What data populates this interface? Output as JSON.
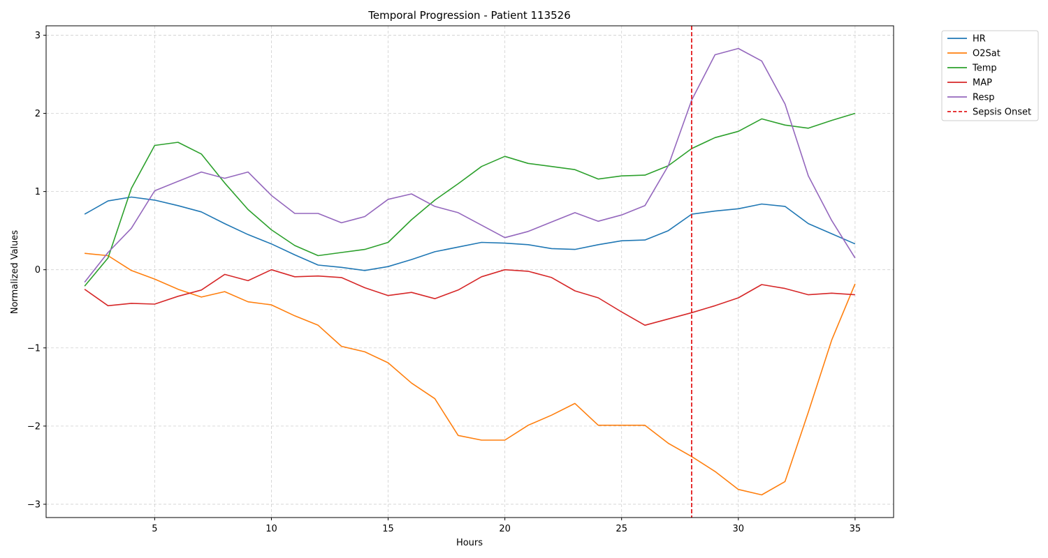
{
  "chart_data": {
    "type": "line",
    "title": "Temporal Progression - Patient 113526",
    "xlabel": "Hours",
    "ylabel": "Normalized Values",
    "xlim": [
      0.35,
      36.65
    ],
    "ylim": [
      -3.17,
      3.12
    ],
    "xticks": [
      5,
      10,
      15,
      20,
      25,
      30,
      35
    ],
    "xtick_labels": [
      "5",
      "10",
      "15",
      "20",
      "25",
      "30",
      "35"
    ],
    "yticks": [
      -3,
      -2,
      -1,
      0,
      1,
      2,
      3
    ],
    "ytick_labels": [
      "−3",
      "−2",
      "−1",
      "0",
      "1",
      "2",
      "3"
    ],
    "grid": true,
    "legend_position": "outside top-right",
    "x": [
      2,
      3,
      4,
      5,
      6,
      7,
      8,
      9,
      10,
      11,
      12,
      13,
      14,
      15,
      16,
      17,
      18,
      19,
      20,
      21,
      22,
      23,
      24,
      25,
      26,
      27,
      28,
      29,
      30,
      31,
      32,
      33,
      34,
      35
    ],
    "series": [
      {
        "name": "HR",
        "color": "#1f77b4",
        "style": "solid",
        "values": [
          0.71,
          0.88,
          0.93,
          0.89,
          0.82,
          0.74,
          0.59,
          0.45,
          0.33,
          0.19,
          0.06,
          0.03,
          -0.01,
          0.04,
          0.13,
          0.23,
          0.29,
          0.35,
          0.34,
          0.32,
          0.27,
          0.26,
          0.32,
          0.37,
          0.38,
          0.5,
          0.71,
          0.75,
          0.78,
          0.84,
          0.81,
          0.59,
          0.46,
          0.33
        ]
      },
      {
        "name": "O2Sat",
        "color": "#ff7f0e",
        "style": "solid",
        "values": [
          0.21,
          0.18,
          -0.01,
          -0.12,
          -0.25,
          -0.35,
          -0.28,
          -0.41,
          -0.45,
          -0.59,
          -0.71,
          -0.98,
          -1.05,
          -1.19,
          -1.45,
          -1.65,
          -2.12,
          -2.18,
          -2.18,
          -1.99,
          -1.86,
          -1.71,
          -1.99,
          -1.99,
          -1.99,
          -2.22,
          -2.39,
          -2.58,
          -2.81,
          -2.88,
          -2.71,
          -1.82,
          -0.9,
          -0.18
        ]
      },
      {
        "name": "Temp",
        "color": "#2ca02c",
        "style": "solid",
        "values": [
          -0.21,
          0.15,
          1.04,
          1.59,
          1.63,
          1.48,
          1.11,
          0.77,
          0.51,
          0.31,
          0.18,
          0.22,
          0.26,
          0.35,
          0.64,
          0.89,
          1.1,
          1.32,
          1.45,
          1.36,
          1.32,
          1.28,
          1.16,
          1.2,
          1.21,
          1.33,
          1.55,
          1.69,
          1.77,
          1.93,
          1.85,
          1.81,
          1.91,
          2.0
        ]
      },
      {
        "name": "MAP",
        "color": "#d62728",
        "style": "solid",
        "values": [
          -0.25,
          -0.46,
          -0.43,
          -0.44,
          -0.34,
          -0.26,
          -0.06,
          -0.14,
          0.0,
          -0.09,
          -0.08,
          -0.1,
          -0.23,
          -0.33,
          -0.29,
          -0.37,
          -0.26,
          -0.09,
          0.0,
          -0.02,
          -0.1,
          -0.27,
          -0.36,
          -0.54,
          -0.71,
          -0.63,
          -0.55,
          -0.46,
          -0.36,
          -0.19,
          -0.24,
          -0.32,
          -0.3,
          -0.32
        ]
      },
      {
        "name": "Resp",
        "color": "#9467bd",
        "style": "solid",
        "values": [
          -0.16,
          0.22,
          0.53,
          1.01,
          1.13,
          1.25,
          1.17,
          1.25,
          0.95,
          0.72,
          0.72,
          0.6,
          0.68,
          0.9,
          0.97,
          0.81,
          0.73,
          0.57,
          0.41,
          0.49,
          0.61,
          0.73,
          0.62,
          0.7,
          0.82,
          1.33,
          2.17,
          2.75,
          2.83,
          2.67,
          2.12,
          1.2,
          0.63,
          0.15
        ]
      }
    ],
    "vlines": [
      {
        "name": "Sepsis Onset",
        "x": 28,
        "color": "#e31a1c",
        "style": "dashed"
      }
    ]
  }
}
